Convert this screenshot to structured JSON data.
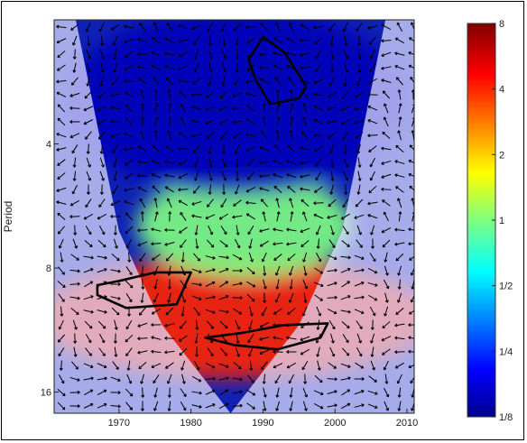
{
  "chart_data": {
    "type": "heatmap",
    "subtype": "wavelet-coherence",
    "title": "",
    "xlabel": "",
    "ylabel": "Period",
    "x_ticks": [
      1970,
      1980,
      1990,
      2000,
      2010
    ],
    "x_range": [
      1961,
      2011
    ],
    "y_ticks": [
      4,
      8,
      16
    ],
    "y_range": [
      2,
      18
    ],
    "y_scale": "log2",
    "y_inverted": true,
    "colorbar": {
      "scale": "log2",
      "tick_labels": [
        "8",
        "4",
        "2",
        "1",
        "1/2",
        "1/4",
        "1/8"
      ],
      "tick_values": [
        8,
        4,
        2,
        1,
        0.5,
        0.25,
        0.125
      ],
      "colormap": "jet",
      "range": [
        0.125,
        8
      ]
    },
    "cone_of_influence": {
      "shaded_outside": true,
      "color": "#e0e0ff",
      "left": [
        [
          1964,
          2
        ],
        [
          1970,
          6.5
        ],
        [
          1976,
          11
        ],
        [
          1985.5,
          18
        ]
      ],
      "right": [
        [
          2007,
          2
        ],
        [
          2001,
          6.5
        ],
        [
          1995,
          11
        ],
        [
          1985.5,
          18
        ]
      ]
    },
    "significance_contours": [
      {
        "region": "upper-center",
        "x": [
          1988,
          1990,
          1993,
          1996,
          1995,
          1991,
          1989
        ],
        "y": [
          2.5,
          2.2,
          2.4,
          2.9,
          3.1,
          3.2,
          2.8
        ]
      },
      {
        "region": "left-lower",
        "x": [
          1967,
          1970,
          1975,
          1980,
          1978,
          1971,
          1967
        ],
        "y": [
          8.8,
          8.6,
          8.2,
          8.2,
          9.8,
          10,
          9.3
        ]
      },
      {
        "region": "center-lower",
        "x": [
          1982,
          1987,
          1993,
          1999,
          1998,
          1992,
          1986,
          1982
        ],
        "y": [
          11.8,
          11.5,
          11,
          10.9,
          11.8,
          12.6,
          12.3,
          11.8
        ]
      }
    ],
    "heatmap_zones": [
      {
        "name": "high-power-low-period",
        "x": [
          1961,
          2011
        ],
        "y": [
          8,
          14
        ],
        "level": 4
      },
      {
        "name": "mid-power-cyan",
        "x": [
          1975,
          2000
        ],
        "y": [
          5,
          8
        ],
        "level": 1
      },
      {
        "name": "low-power-top",
        "x": [
          1965,
          2008
        ],
        "y": [
          2,
          5
        ],
        "level": 0.15
      }
    ],
    "arrows": "phase arrows on a regular grid across the full plot area",
    "colors": {
      "coi": "#e0e0ff",
      "contour": "#000000",
      "arrow": "#000000"
    }
  }
}
